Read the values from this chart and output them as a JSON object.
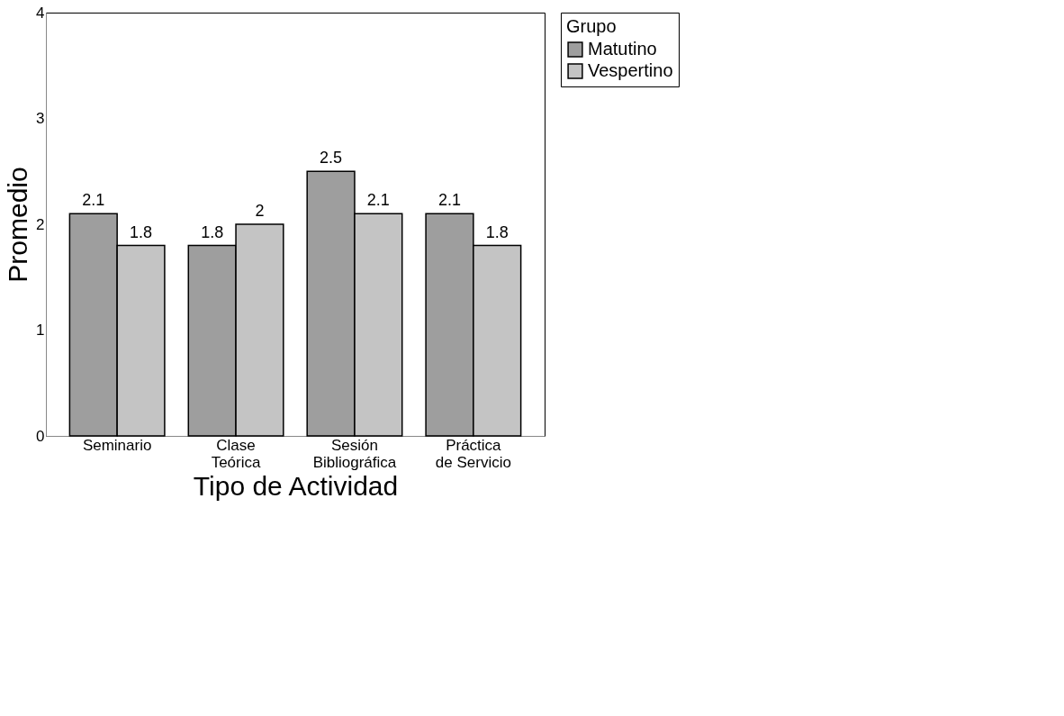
{
  "chart_data": {
    "type": "bar",
    "xlabel": "Tipo de Actividad",
    "ylabel": "Promedio",
    "legend_title": "Grupo",
    "categories": [
      "Seminario",
      "Clase\nTeórica",
      "Sesión\nBibliográfica",
      "Práctica\nde Servicio"
    ],
    "series": [
      {
        "name": "Matutino",
        "color": "#9e9e9e",
        "values": [
          2.1,
          1.8,
          2.5,
          2.1
        ]
      },
      {
        "name": "Vespertino",
        "color": "#c4c4c4",
        "values": [
          1.8,
          2,
          2.1,
          1.8
        ]
      }
    ],
    "ylim": [
      0,
      4
    ],
    "yticks": [
      0,
      1,
      2,
      3,
      4
    ],
    "grid": false,
    "legend": "right",
    "data_labels": true
  }
}
